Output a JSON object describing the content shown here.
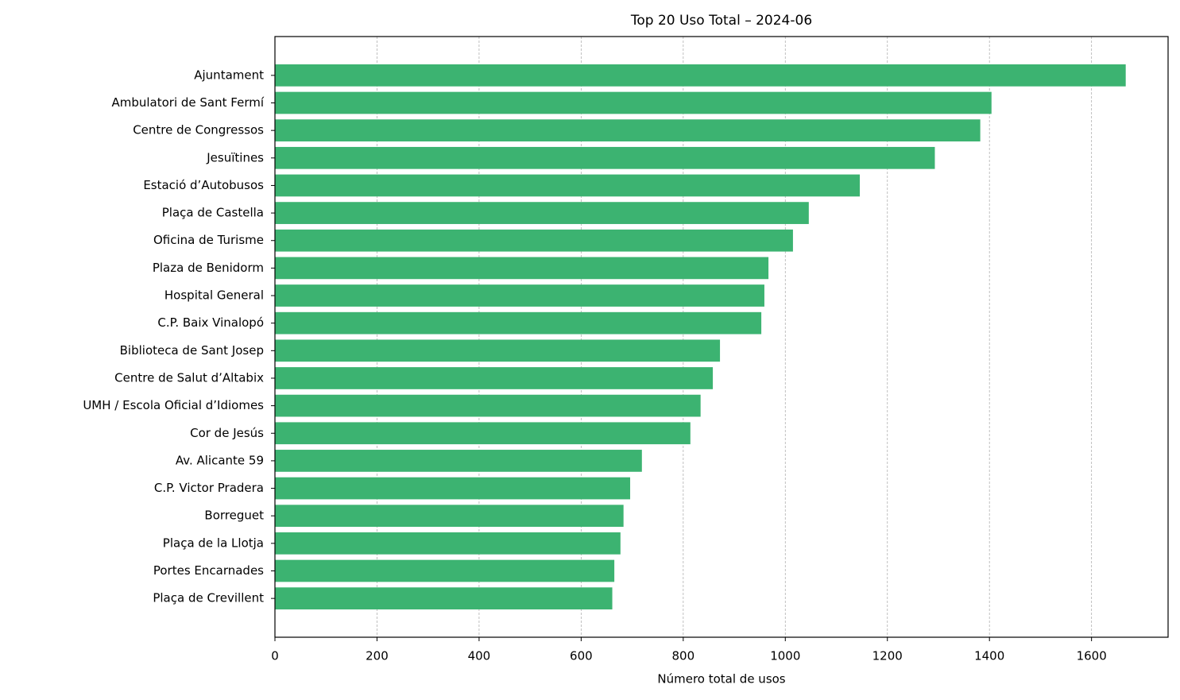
{
  "chart_data": {
    "type": "barh",
    "title": "Top 20 Uso Total – 2024-06",
    "xlabel": "Número total de usos",
    "categories": [
      "Ajuntament",
      "Ambulatori de Sant Fermí",
      "Centre de Congressos",
      "Jesuïtines",
      "Estació d’Autobusos",
      "Plaça de Castella",
      "Oficina de Turisme",
      "Plaza de Benidorm",
      "Hospital General",
      "C.P. Baix Vinalopó",
      "Biblioteca de Sant Josep",
      "Centre de Salut d’Altabix",
      "UMH / Escola Oficial d’Idiomes",
      "Cor de Jesús",
      "Av. Alicante 59",
      "C.P. Victor Pradera",
      "Borreguet",
      "Plaça de la Llotja",
      "Portes Encarnades",
      "Plaça de Crevillent"
    ],
    "values": [
      1667,
      1404,
      1382,
      1293,
      1146,
      1046,
      1015,
      967,
      959,
      953,
      872,
      858,
      834,
      814,
      719,
      696,
      683,
      677,
      665,
      661
    ],
    "color": "#3cb371",
    "xlim": [
      0,
      1750
    ],
    "xticks": [
      0,
      200,
      400,
      600,
      800,
      1000,
      1200,
      1400,
      1600
    ],
    "grid": true
  }
}
